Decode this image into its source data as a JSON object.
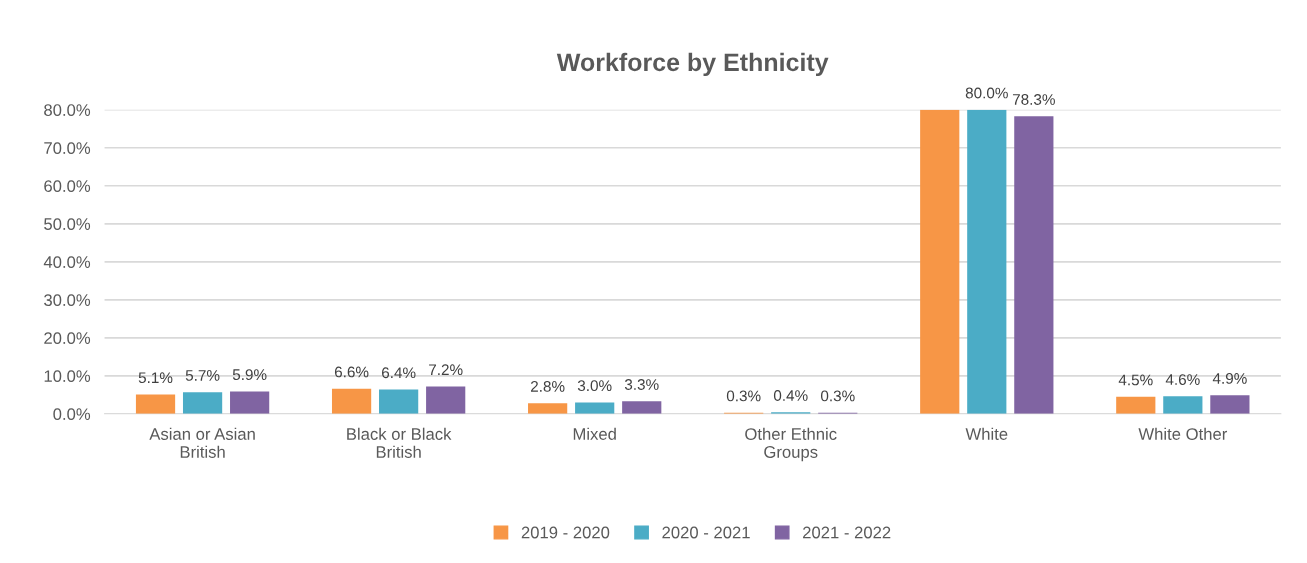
{
  "chart_data": {
    "type": "bar",
    "title": "Workforce by Ethnicity",
    "categories": [
      "Asian or Asian\nBritish",
      "Black or Black\nBritish",
      "Mixed",
      "Other Ethnic\nGroups",
      "White",
      "White Other"
    ],
    "series": [
      {
        "name": "2019 - 2020",
        "color": "#f79646",
        "values": [
          5.1,
          6.6,
          2.8,
          0.3,
          80.0,
          4.5
        ],
        "value_labels": [
          "5.1%",
          "6.6%",
          "2.8%",
          "0.3%",
          null,
          "4.5%"
        ]
      },
      {
        "name": "2020 - 2021",
        "color": "#4bacc6",
        "values": [
          5.7,
          6.4,
          3.0,
          0.4,
          80.0,
          4.6
        ],
        "value_labels": [
          "5.7%",
          "6.4%",
          "3.0%",
          "0.4%",
          "80.0%",
          "4.6%"
        ]
      },
      {
        "name": "2021 - 2022",
        "color": "#8064a2",
        "values": [
          5.9,
          7.2,
          3.3,
          0.3,
          78.3,
          4.9
        ],
        "value_labels": [
          "5.9%",
          "7.2%",
          "3.3%",
          "0.3%",
          "78.3%",
          "4.9%"
        ]
      }
    ],
    "ylim": [
      0,
      80
    ],
    "yticks": [
      {
        "value": 0,
        "label": "0.0%"
      },
      {
        "value": 10,
        "label": "10.0%"
      },
      {
        "value": 20,
        "label": "20.0%"
      },
      {
        "value": 30,
        "label": "30.0%"
      },
      {
        "value": 40,
        "label": "40.0%"
      },
      {
        "value": 50,
        "label": "50.0%"
      },
      {
        "value": 60,
        "label": "60.0%"
      },
      {
        "value": 70,
        "label": "70.0%"
      },
      {
        "value": 80,
        "label": "80.0%"
      }
    ],
    "grid": "y",
    "legend": "bottom"
  }
}
